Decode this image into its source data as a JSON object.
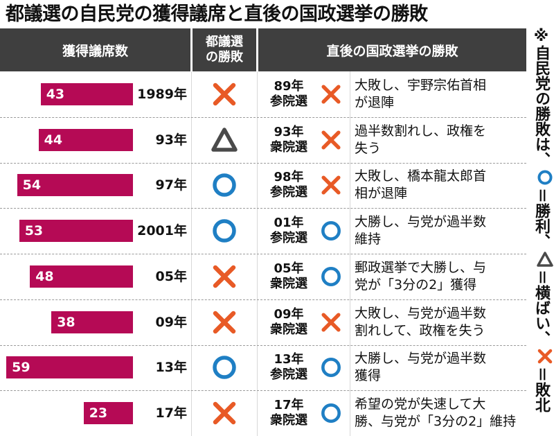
{
  "title": "都議選の自民党の獲得議席と直後の国政選挙の勝敗",
  "headers": {
    "seats": "獲得議席数",
    "metro_line1": "都議選",
    "metro_line2": "の勝敗",
    "national": "直後の国政選挙の勝敗"
  },
  "note": {
    "prefix": "※自民党の勝敗は、",
    "win_text": "＝勝利、",
    "draw_text": "＝横ばい、",
    "lose_text": "＝敗北"
  },
  "colors": {
    "bar": "#b50a55",
    "win": "#1f7fc4",
    "lose": "#e85a26",
    "draw": "#4a4a4a",
    "header": "#3f3f3f"
  },
  "chart_data": {
    "type": "bar",
    "orientation": "horizontal",
    "categories": [
      "1989年",
      "93年",
      "97年",
      "2001年",
      "05年",
      "09年",
      "13年",
      "17年"
    ],
    "values": [
      43,
      44,
      54,
      53,
      48,
      38,
      59,
      23
    ],
    "metro_result": [
      "lose",
      "draw",
      "win",
      "win",
      "lose",
      "lose",
      "win",
      "lose"
    ],
    "national_election_line1": [
      "89年",
      "93年",
      "98年",
      "01年",
      "05年",
      "09年",
      "13年",
      "17年"
    ],
    "national_election_line2": [
      "参院選",
      "衆院選",
      "参院選",
      "参院選",
      "衆院選",
      "衆院選",
      "参院選",
      "衆院選"
    ],
    "national_result": [
      "lose",
      "lose",
      "lose",
      "win",
      "win",
      "lose",
      "win",
      "win"
    ],
    "outcome_line1": [
      "大敗し、宇野宗佑首相",
      "過半数割れし、政権を",
      "大敗し、橋本龍太郎首",
      "大勝し、与党が過半数",
      "郵政選挙で大勝し、与",
      "大敗し、与党が過半数",
      "大勝し、与党が過半数",
      "希望の党が失速して大"
    ],
    "outcome_line2": [
      "が退陣",
      "失う",
      "相が退陣",
      "維持",
      "党が「3分の2」獲得",
      "割れして、政権を失う",
      "獲得",
      "勝、与党が「3分の2」維持"
    ]
  }
}
